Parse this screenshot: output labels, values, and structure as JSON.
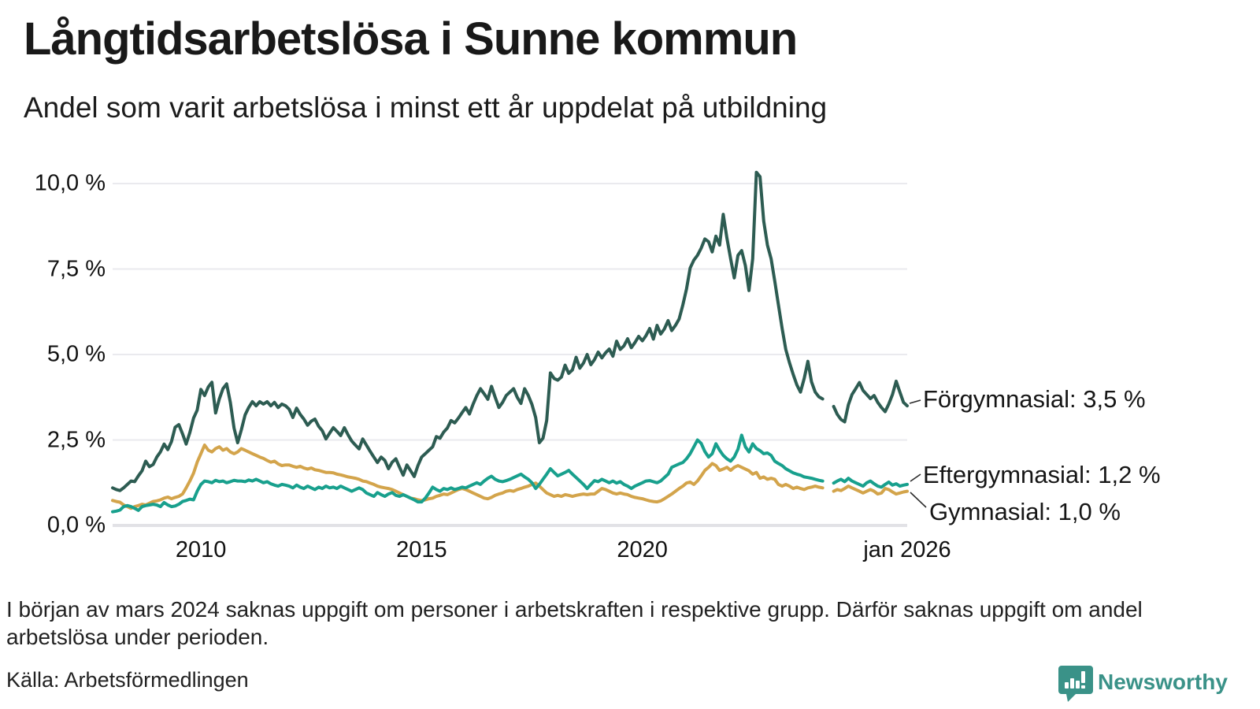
{
  "title": "Långtidsarbetslösa i Sunne kommun",
  "subtitle": "Andel som varit arbetslösa i minst ett år uppdelat på utbildning",
  "footnote": "I början av mars 2024 saknas uppgift om personer i arbetskraften i respektive grupp. Därför saknas uppgift om andel arbetslösa under perioden.",
  "source": "Källa: Arbetsförmedlingen",
  "logo": {
    "text": "Newsworthy",
    "color": "#3a9288"
  },
  "colors": {
    "forgymnasial": "#2d5c52",
    "eftergymnasial": "#18a08d",
    "gymnasial": "#d3a44b",
    "gridline": "#eaeaee",
    "baseline": "#e2e2e6",
    "connector": "#2b2b2b"
  },
  "chart_data": {
    "type": "line",
    "x_start": "2008-01",
    "x_end": "2026-01",
    "x_interval": "monthly",
    "ylim": [
      0,
      10.45
    ],
    "grid": "horizontal",
    "gap_months": [
      "2024-03",
      "2024-04"
    ],
    "yticks": [
      {
        "value": 0,
        "label": "0,0 %"
      },
      {
        "value": 2.5,
        "label": "2,5 %"
      },
      {
        "value": 5,
        "label": "5,0 %"
      },
      {
        "value": 7.5,
        "label": "7,5 %"
      },
      {
        "value": 10,
        "label": "10,0 %"
      }
    ],
    "xticks": [
      {
        "label": "2010",
        "year": 2010
      },
      {
        "label": "2015",
        "year": 2015
      },
      {
        "label": "2020",
        "year": 2020
      },
      {
        "label": "jan 2026",
        "year": 2026
      }
    ],
    "series": [
      {
        "name": "Gymnasial",
        "end_label": "Gymnasial: 1,0 %",
        "end_value": "1,0 %",
        "color": "#d3a44b",
        "values": [
          0.73,
          0.7,
          0.68,
          0.6,
          0.55,
          0.5,
          0.55,
          0.58,
          0.62,
          0.6,
          0.65,
          0.7,
          0.72,
          0.75,
          0.8,
          0.83,
          0.78,
          0.82,
          0.85,
          0.92,
          1.1,
          1.3,
          1.53,
          1.85,
          2.1,
          2.35,
          2.2,
          2.15,
          2.25,
          2.3,
          2.2,
          2.25,
          2.15,
          2.1,
          2.15,
          2.25,
          2.2,
          2.15,
          2.1,
          2.05,
          2.0,
          1.96,
          1.9,
          1.85,
          1.88,
          1.8,
          1.75,
          1.77,
          1.77,
          1.73,
          1.7,
          1.73,
          1.68,
          1.65,
          1.68,
          1.63,
          1.61,
          1.58,
          1.55,
          1.55,
          1.54,
          1.5,
          1.48,
          1.45,
          1.42,
          1.4,
          1.38,
          1.35,
          1.3,
          1.28,
          1.24,
          1.2,
          1.15,
          1.12,
          1.1,
          1.08,
          1.05,
          1.0,
          0.95,
          0.9,
          0.85,
          0.8,
          0.78,
          0.75,
          0.73,
          0.75,
          0.78,
          0.8,
          0.85,
          0.88,
          0.92,
          0.9,
          0.95,
          1.0,
          1.05,
          1.08,
          1.05,
          1.0,
          0.95,
          0.9,
          0.85,
          0.8,
          0.78,
          0.82,
          0.88,
          0.92,
          0.95,
          1.0,
          1.02,
          1.0,
          1.05,
          1.08,
          1.12,
          1.15,
          1.2,
          1.24,
          1.15,
          1.05,
          0.95,
          0.9,
          0.85,
          0.88,
          0.85,
          0.9,
          0.88,
          0.85,
          0.88,
          0.9,
          0.92,
          0.9,
          0.92,
          0.92,
          1.0,
          1.08,
          1.05,
          1.0,
          0.95,
          0.92,
          0.95,
          0.92,
          0.9,
          0.85,
          0.82,
          0.8,
          0.78,
          0.75,
          0.72,
          0.7,
          0.69,
          0.72,
          0.78,
          0.85,
          0.92,
          1.0,
          1.08,
          1.15,
          1.24,
          1.27,
          1.2,
          1.3,
          1.45,
          1.61,
          1.7,
          1.81,
          1.75,
          1.61,
          1.65,
          1.7,
          1.61,
          1.7,
          1.75,
          1.7,
          1.65,
          1.6,
          1.5,
          1.55,
          1.38,
          1.42,
          1.35,
          1.38,
          1.35,
          1.2,
          1.15,
          1.2,
          1.15,
          1.08,
          1.12,
          1.08,
          1.05,
          1.1,
          1.12,
          1.15,
          1.12,
          1.1,
          null,
          null,
          1.0,
          1.05,
          1.02,
          1.08,
          1.15,
          1.1,
          1.05,
          1.0,
          0.95,
          1.0,
          1.05,
          1.0,
          0.92,
          0.95,
          1.08,
          1.05,
          0.98,
          0.92,
          0.95,
          0.98,
          1.0
        ]
      },
      {
        "name": "Eftergymnasial",
        "end_label": "Eftergymnasial: 1,2 %",
        "end_value": "1,2 %",
        "color": "#18a08d",
        "values": [
          0.4,
          0.42,
          0.45,
          0.55,
          0.58,
          0.55,
          0.5,
          0.44,
          0.55,
          0.58,
          0.6,
          0.62,
          0.6,
          0.55,
          0.67,
          0.6,
          0.55,
          0.57,
          0.62,
          0.7,
          0.73,
          0.77,
          0.75,
          1.0,
          1.2,
          1.3,
          1.28,
          1.25,
          1.32,
          1.28,
          1.3,
          1.25,
          1.28,
          1.32,
          1.3,
          1.3,
          1.28,
          1.33,
          1.3,
          1.35,
          1.3,
          1.25,
          1.28,
          1.22,
          1.18,
          1.15,
          1.2,
          1.18,
          1.15,
          1.1,
          1.18,
          1.12,
          1.08,
          1.15,
          1.1,
          1.05,
          1.12,
          1.08,
          1.15,
          1.1,
          1.12,
          1.08,
          1.15,
          1.1,
          1.05,
          1.0,
          1.05,
          1.1,
          1.05,
          0.95,
          0.9,
          0.85,
          0.96,
          0.9,
          0.85,
          0.92,
          0.96,
          0.88,
          0.85,
          0.9,
          0.85,
          0.8,
          0.75,
          0.69,
          0.69,
          0.8,
          0.95,
          1.12,
          1.05,
          1.0,
          1.08,
          1.05,
          1.1,
          1.05,
          1.08,
          1.12,
          1.1,
          1.15,
          1.2,
          1.25,
          1.2,
          1.3,
          1.38,
          1.44,
          1.35,
          1.3,
          1.28,
          1.31,
          1.35,
          1.4,
          1.45,
          1.5,
          1.42,
          1.35,
          1.25,
          1.08,
          1.2,
          1.35,
          1.5,
          1.66,
          1.55,
          1.45,
          1.5,
          1.55,
          1.61,
          1.5,
          1.4,
          1.3,
          1.2,
          1.08,
          1.2,
          1.31,
          1.28,
          1.35,
          1.3,
          1.25,
          1.3,
          1.24,
          1.28,
          1.2,
          1.15,
          1.08,
          1.15,
          1.2,
          1.25,
          1.3,
          1.31,
          1.28,
          1.25,
          1.3,
          1.4,
          1.5,
          1.7,
          1.75,
          1.8,
          1.84,
          1.95,
          2.1,
          2.3,
          2.5,
          2.4,
          2.16,
          2.0,
          2.1,
          2.39,
          2.2,
          2.05,
          1.95,
          1.88,
          2.0,
          2.23,
          2.64,
          2.3,
          2.15,
          2.39,
          2.25,
          2.19,
          2.1,
          2.12,
          2.05,
          1.88,
          1.81,
          1.75,
          1.66,
          1.6,
          1.54,
          1.5,
          1.47,
          1.42,
          1.4,
          1.38,
          1.35,
          1.32,
          1.3,
          null,
          null,
          1.24,
          1.3,
          1.35,
          1.28,
          1.38,
          1.3,
          1.25,
          1.2,
          1.15,
          1.25,
          1.3,
          1.22,
          1.15,
          1.12,
          1.2,
          1.27,
          1.18,
          1.22,
          1.15,
          1.18,
          1.2
        ]
      },
      {
        "name": "Förgymnasial",
        "end_label": "Förgymnasial: 3,5 %",
        "end_value": "3,5 %",
        "color": "#2d5c52",
        "values": [
          1.1,
          1.05,
          1.02,
          1.1,
          1.2,
          1.3,
          1.28,
          1.45,
          1.6,
          1.88,
          1.72,
          1.78,
          2.0,
          2.15,
          2.38,
          2.22,
          2.45,
          2.87,
          2.95,
          2.68,
          2.38,
          2.72,
          3.14,
          3.37,
          3.98,
          3.8,
          4.05,
          4.19,
          3.29,
          3.7,
          4.0,
          4.14,
          3.6,
          2.85,
          2.42,
          2.8,
          3.23,
          3.45,
          3.62,
          3.5,
          3.62,
          3.55,
          3.62,
          3.5,
          3.6,
          3.45,
          3.55,
          3.5,
          3.4,
          3.16,
          3.43,
          3.25,
          3.11,
          2.93,
          3.05,
          3.11,
          2.9,
          2.77,
          2.53,
          2.7,
          2.86,
          2.75,
          2.63,
          2.86,
          2.65,
          2.47,
          2.35,
          2.24,
          2.53,
          2.35,
          2.17,
          2.0,
          1.84,
          2.0,
          1.9,
          1.66,
          1.85,
          1.95,
          1.7,
          1.47,
          1.77,
          1.6,
          1.43,
          1.75,
          2.0,
          2.1,
          2.2,
          2.3,
          2.6,
          2.55,
          2.73,
          2.85,
          3.07,
          3.0,
          3.14,
          3.3,
          3.45,
          3.26,
          3.55,
          3.8,
          4.0,
          3.85,
          3.69,
          4.07,
          3.75,
          3.45,
          3.6,
          3.8,
          3.9,
          4.0,
          3.75,
          3.57,
          4.0,
          3.8,
          3.54,
          3.16,
          2.42,
          2.55,
          3.07,
          4.46,
          4.3,
          4.25,
          4.34,
          4.69,
          4.45,
          4.55,
          4.92,
          4.6,
          4.75,
          5.0,
          4.7,
          4.85,
          5.07,
          4.9,
          5.05,
          5.16,
          4.95,
          5.39,
          5.15,
          5.25,
          5.46,
          5.2,
          5.35,
          5.53,
          5.4,
          5.55,
          5.76,
          5.45,
          5.85,
          5.6,
          5.75,
          5.99,
          5.7,
          5.85,
          6.04,
          6.45,
          6.91,
          7.53,
          7.76,
          7.9,
          8.11,
          8.38,
          8.3,
          8.0,
          8.46,
          8.2,
          9.1,
          8.4,
          7.8,
          7.24,
          7.9,
          8.04,
          7.6,
          6.87,
          7.8,
          10.33,
          10.2,
          8.9,
          8.2,
          7.8,
          7.15,
          6.45,
          5.76,
          5.15,
          4.76,
          4.42,
          4.11,
          3.9,
          4.3,
          4.8,
          4.2,
          3.9,
          3.76,
          3.7,
          null,
          null,
          3.48,
          3.25,
          3.1,
          3.03,
          3.53,
          3.83,
          4.0,
          4.18,
          3.95,
          3.83,
          3.71,
          3.8,
          3.6,
          3.45,
          3.33,
          3.55,
          3.83,
          4.22,
          3.9,
          3.6,
          3.5
        ]
      }
    ]
  }
}
